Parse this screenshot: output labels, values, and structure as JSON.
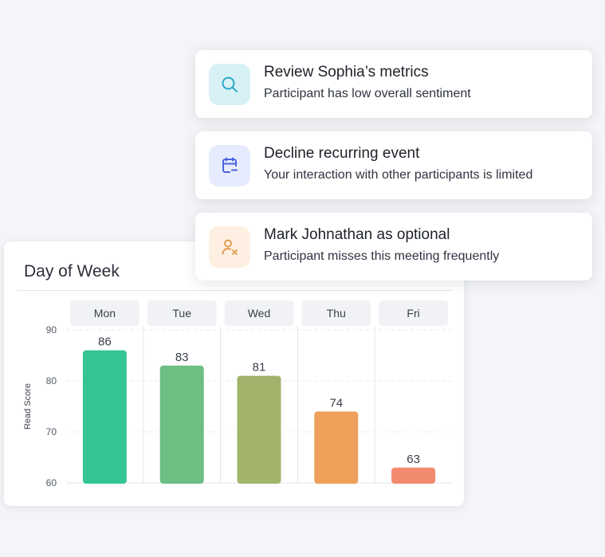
{
  "suggestions": [
    {
      "title": "Review Sophia’s metrics",
      "subtitle": "Participant has low overall sentiment",
      "icon": "search-icon",
      "icon_bg": "#d8f1f6",
      "icon_color": "#2aa9c9"
    },
    {
      "title": "Decline recurring event",
      "subtitle": "Your interaction with other participants is limited",
      "icon": "calendar-minus-icon",
      "icon_bg": "#e6ebfd",
      "icon_color": "#4a63e0"
    },
    {
      "title": "Mark Johnathan as optional",
      "subtitle": "Participant misses this meeting frequently",
      "icon": "user-remove-icon",
      "icon_bg": "#fdf0e2",
      "icon_color": "#e59a4f"
    }
  ],
  "chart": {
    "title": "Day of Week"
  },
  "chart_data": {
    "type": "bar",
    "title": "Day of Week",
    "categories": [
      "Mon",
      "Tue",
      "Wed",
      "Thu",
      "Fri"
    ],
    "values": [
      86,
      83,
      81,
      74,
      63
    ],
    "colors": [
      "#35c495",
      "#6bbf83",
      "#a2b46c",
      "#eda05a",
      "#f28a6d"
    ],
    "ylabel": "Read Score",
    "xlabel": "",
    "ylim": [
      60,
      90
    ],
    "yticks": [
      60,
      70,
      80,
      90
    ],
    "grid": true,
    "legend": "none"
  }
}
